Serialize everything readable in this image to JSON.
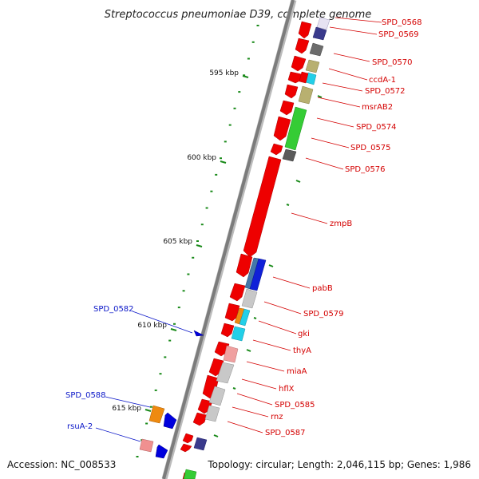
{
  "title": "Streptococcus pneumoniae D39, complete genome",
  "footer": {
    "accession": "Accession: NC_008533",
    "summary": "Topology: circular; Length: 2,046,115 bp; Genes: 1,986"
  },
  "ticks": [
    "595 kbp",
    "600 kbp",
    "605 kbp",
    "610 kbp",
    "615 kbp"
  ],
  "colors": {
    "forward_gene": "#ee0000",
    "reverse_gene": "#0000dd",
    "label_right": "#d40000",
    "label_left": "#0a16c8",
    "tick_green": "#1a8a1a",
    "backbone": "#888888"
  },
  "labels_right": [
    "SPD_0568",
    "SPD_0569",
    "SPD_0570",
    "ccdA-1",
    "SPD_0572",
    "msrAB2",
    "SPD_0574",
    "SPD_0575",
    "SPD_0576",
    "zmpB",
    "pabB",
    "SPD_0579",
    "gki",
    "thyA",
    "miaA",
    "hflX",
    "SPD_0585",
    "rnz",
    "SPD_0587"
  ],
  "labels_left": [
    "SPD_0582",
    "SPD_0588",
    "rsuA-2"
  ]
}
